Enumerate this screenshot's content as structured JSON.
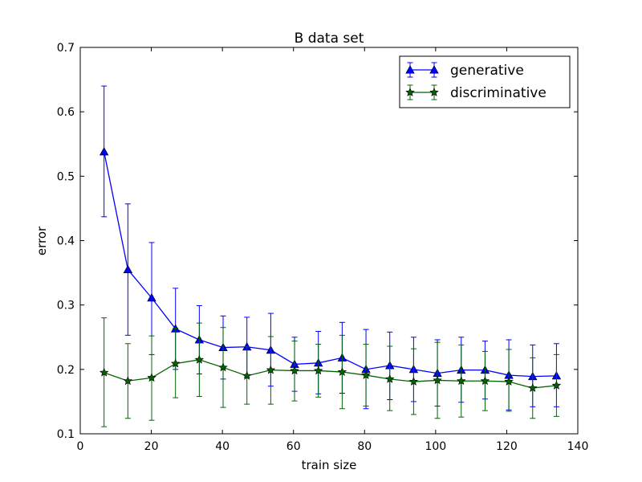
{
  "chart_data": {
    "type": "line",
    "title": "B data set",
    "xlabel": "train size",
    "ylabel": "error",
    "xlim": [
      0,
      140
    ],
    "ylim": [
      0.1,
      0.7
    ],
    "xticks": [
      0,
      20,
      40,
      60,
      80,
      100,
      120,
      140
    ],
    "xtick_labels": [
      "0",
      "20",
      "40",
      "60",
      "80",
      "100",
      "120",
      "140"
    ],
    "yticks": [
      0.1,
      0.2,
      0.3,
      0.4,
      0.5,
      0.6,
      0.7
    ],
    "ytick_labels": [
      "0.1",
      "0.2",
      "0.3",
      "0.4",
      "0.5",
      "0.6",
      "0.7"
    ],
    "grid": false,
    "legend_position": "top-right",
    "x": [
      6.7,
      13.4,
      20.1,
      26.8,
      33.5,
      40.2,
      46.9,
      53.6,
      60.3,
      67.0,
      73.7,
      80.4,
      87.1,
      93.8,
      100.5,
      107.2,
      113.9,
      120.6,
      127.3,
      134.0
    ],
    "series": [
      {
        "name": "generative",
        "color": "#0000ff",
        "marker": "triangle",
        "values": [
          0.538,
          0.355,
          0.311,
          0.263,
          0.246,
          0.234,
          0.235,
          0.23,
          0.208,
          0.21,
          0.218,
          0.2,
          0.206,
          0.2,
          0.194,
          0.199,
          0.199,
          0.191,
          0.189,
          0.19
        ],
        "err_low": [
          0.437,
          0.253,
          0.223,
          0.2,
          0.193,
          0.185,
          0.188,
          0.174,
          0.166,
          0.162,
          0.163,
          0.139,
          0.153,
          0.15,
          0.143,
          0.149,
          0.154,
          0.137,
          0.142,
          0.142
        ],
        "err_high": [
          0.64,
          0.457,
          0.397,
          0.326,
          0.299,
          0.283,
          0.281,
          0.287,
          0.25,
          0.259,
          0.273,
          0.262,
          0.258,
          0.25,
          0.246,
          0.25,
          0.244,
          0.246,
          0.238,
          0.24
        ]
      },
      {
        "name": "discriminative",
        "color": "#006400",
        "marker": "star",
        "values": [
          0.195,
          0.182,
          0.187,
          0.209,
          0.215,
          0.203,
          0.19,
          0.199,
          0.198,
          0.198,
          0.196,
          0.191,
          0.185,
          0.181,
          0.183,
          0.182,
          0.182,
          0.181,
          0.171,
          0.175
        ],
        "err_low": [
          0.111,
          0.124,
          0.121,
          0.156,
          0.158,
          0.141,
          0.146,
          0.146,
          0.151,
          0.157,
          0.139,
          0.143,
          0.136,
          0.13,
          0.124,
          0.126,
          0.136,
          0.135,
          0.124,
          0.127
        ],
        "err_high": [
          0.28,
          0.24,
          0.252,
          0.264,
          0.272,
          0.265,
          0.235,
          0.251,
          0.244,
          0.239,
          0.253,
          0.239,
          0.236,
          0.232,
          0.242,
          0.238,
          0.228,
          0.231,
          0.218,
          0.223
        ]
      }
    ]
  }
}
